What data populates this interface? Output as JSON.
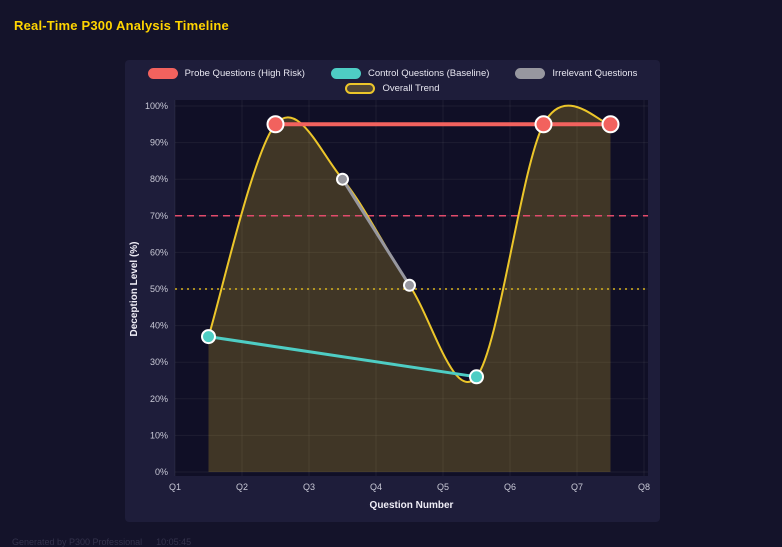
{
  "page": {
    "title": "Real-Time P300 Analysis Timeline",
    "footer_note": "Generated by P300 Professional",
    "footer_time": "10:05:45"
  },
  "chart_data": {
    "type": "line",
    "title": "Real-Time P300 Analysis Timeline",
    "xlabel": "Question Number",
    "ylabel": "Deception Level (%)",
    "x_range": [
      1,
      8
    ],
    "x_tick_labels": [
      "Q1",
      "Q2",
      "Q3",
      "Q4",
      "Q5",
      "Q6",
      "Q7",
      "Q8"
    ],
    "ylim": [
      0,
      100
    ],
    "y_tick_step": 10,
    "y_tick_labels": [
      "0%",
      "10%",
      "20%",
      "30%",
      "40%",
      "50%",
      "60%",
      "70%",
      "80%",
      "90%",
      "100%"
    ],
    "grid": true,
    "legend_position": "top",
    "legend_rows": [
      [
        0,
        1,
        2
      ],
      [
        3
      ]
    ],
    "colors": {
      "page_background": "#14132a",
      "panel_background": "#1e1d3a",
      "plot_background": "#100f26",
      "grid_line": "rgba(255,255,255,0.06)",
      "tick_text": "#c9c9d6",
      "axis_title_text": "#efedf6",
      "title_text": "#ffd400"
    },
    "thresholds": [
      {
        "name": "high-risk-threshold",
        "value": 70,
        "color": "#e14b6b",
        "dash": "7 5"
      },
      {
        "name": "baseline-threshold",
        "value": 50,
        "color": "#d8b41e",
        "dash": "2 4"
      }
    ],
    "series": [
      {
        "name": "Probe Questions (High Risk)",
        "color": "#f2625e",
        "marker_radius": 8,
        "line_width": 4,
        "smooth": false,
        "points": [
          [
            2.5,
            95
          ],
          [
            6.5,
            95
          ],
          [
            7.5,
            95
          ]
        ]
      },
      {
        "name": "Control Questions (Baseline)",
        "color": "#4ecdc4",
        "marker_radius": 6.5,
        "line_width": 3,
        "smooth": false,
        "points": [
          [
            1.5,
            37
          ],
          [
            5.5,
            26
          ]
        ]
      },
      {
        "name": "Irrelevant Questions",
        "color": "#97979f",
        "marker_radius": 5.5,
        "line_width": 3,
        "smooth": false,
        "points": [
          [
            3.5,
            80
          ],
          [
            4.5,
            51
          ]
        ]
      },
      {
        "name": "Overall Trend",
        "color": "#ecc62a",
        "marker_radius": 0,
        "line_width": 2,
        "smooth": true,
        "fill": "rgba(236,198,42,0.22)",
        "legend_fill": "rgba(236,198,42,0.25)",
        "points": [
          [
            1.5,
            37
          ],
          [
            2.5,
            95
          ],
          [
            3.5,
            80
          ],
          [
            4.5,
            51
          ],
          [
            5.5,
            26
          ],
          [
            6.5,
            95
          ],
          [
            7.5,
            95
          ]
        ]
      }
    ]
  }
}
